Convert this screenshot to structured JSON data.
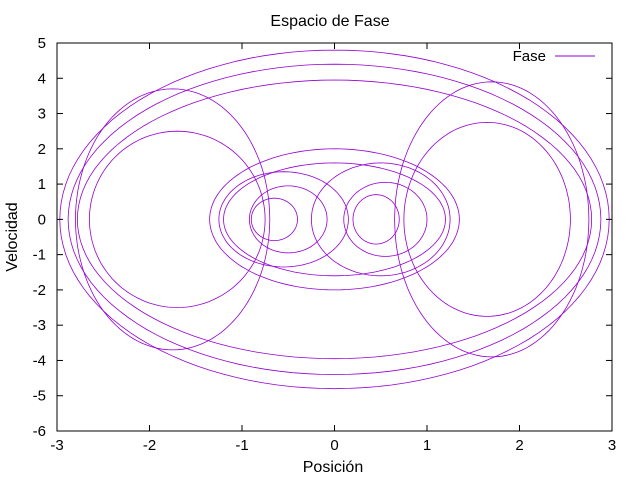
{
  "chart_data": {
    "type": "line",
    "title": "Espacio de Fase",
    "xlabel": "Posición",
    "ylabel": "Velocidad",
    "xlim": [
      -3,
      3
    ],
    "ylim": [
      -6,
      5
    ],
    "x_ticks": [
      "-3",
      "-2",
      "-1",
      "0",
      "1",
      "2",
      "3"
    ],
    "y_ticks": [
      "5",
      "4",
      "3",
      "2",
      "1",
      "0",
      "-1",
      "-2",
      "-3",
      "-4",
      "-5",
      "-6"
    ],
    "grid": false,
    "legend_position": "top-right",
    "series": [
      {
        "name": "Fase",
        "color": "#9400D3",
        "trajectory_family": [
          {
            "center_x": 0,
            "center_y": 0,
            "half_width_x": 2.97,
            "half_height_y": 4.8
          },
          {
            "center_x": 0,
            "center_y": 0,
            "half_width_x": 2.88,
            "half_height_y": 4.4
          },
          {
            "center_x": 0,
            "center_y": 0,
            "half_width_x": 2.78,
            "half_height_y": 3.95
          },
          {
            "center_x": -1.75,
            "center_y": 0,
            "half_width_x": 1.05,
            "half_height_y": 3.7
          },
          {
            "center_x": -1.7,
            "center_y": 0,
            "half_width_x": 0.95,
            "half_height_y": 2.5
          },
          {
            "center_x": 1.7,
            "center_y": 0,
            "half_width_x": 1.05,
            "half_height_y": 3.9
          },
          {
            "center_x": 1.65,
            "center_y": 0,
            "half_width_x": 0.9,
            "half_height_y": 2.75
          },
          {
            "center_x": -0.55,
            "center_y": 0,
            "half_width_x": 0.7,
            "half_height_y": 1.35
          },
          {
            "center_x": -0.5,
            "center_y": 0,
            "half_width_x": 0.42,
            "half_height_y": 0.95
          },
          {
            "center_x": -0.65,
            "center_y": 0,
            "half_width_x": 0.25,
            "half_height_y": 0.6
          },
          {
            "center_x": 0.5,
            "center_y": 0,
            "half_width_x": 0.75,
            "half_height_y": 1.6
          },
          {
            "center_x": 0.55,
            "center_y": 0,
            "half_width_x": 0.45,
            "half_height_y": 1.05
          },
          {
            "center_x": 0.45,
            "center_y": 0,
            "half_width_x": 0.25,
            "half_height_y": 0.7
          },
          {
            "center_x": 0,
            "center_y": 0,
            "half_width_x": 1.35,
            "half_height_y": 2.0
          },
          {
            "center_x": 0,
            "center_y": 0,
            "half_width_x": 1.2,
            "half_height_y": 1.6
          }
        ]
      }
    ]
  }
}
